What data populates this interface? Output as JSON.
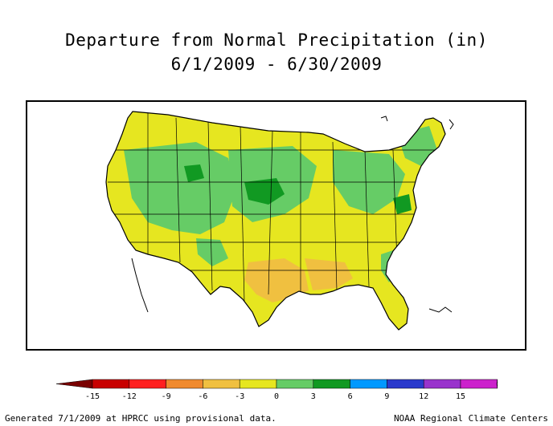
{
  "title": {
    "line1": "Departure from Normal Precipitation (in)",
    "line2": "6/1/2009 - 6/30/2009"
  },
  "map": {
    "region": "contiguous-united-states",
    "background": "#ffffff",
    "dominant_classes": [
      "0 to 3",
      "-3 to 0",
      "3 to 6",
      "-6 to -3"
    ]
  },
  "legend": {
    "ticks": [
      "-15",
      "-12",
      "-9",
      "-6",
      "-3",
      "0",
      "3",
      "6",
      "9",
      "12",
      "15"
    ],
    "colors": [
      "#7a0000",
      "#c80000",
      "#ff2020",
      "#f08a2e",
      "#f0c040",
      "#e6e620",
      "#66cc66",
      "#119922",
      "#0099ff",
      "#2a3acc",
      "#9933cc",
      "#cc22cc",
      "#ff33ff"
    ]
  },
  "footer": {
    "left": "Generated 7/1/2009 at HPRCC using provisional data.",
    "right": "NOAA Regional Climate Centers"
  }
}
